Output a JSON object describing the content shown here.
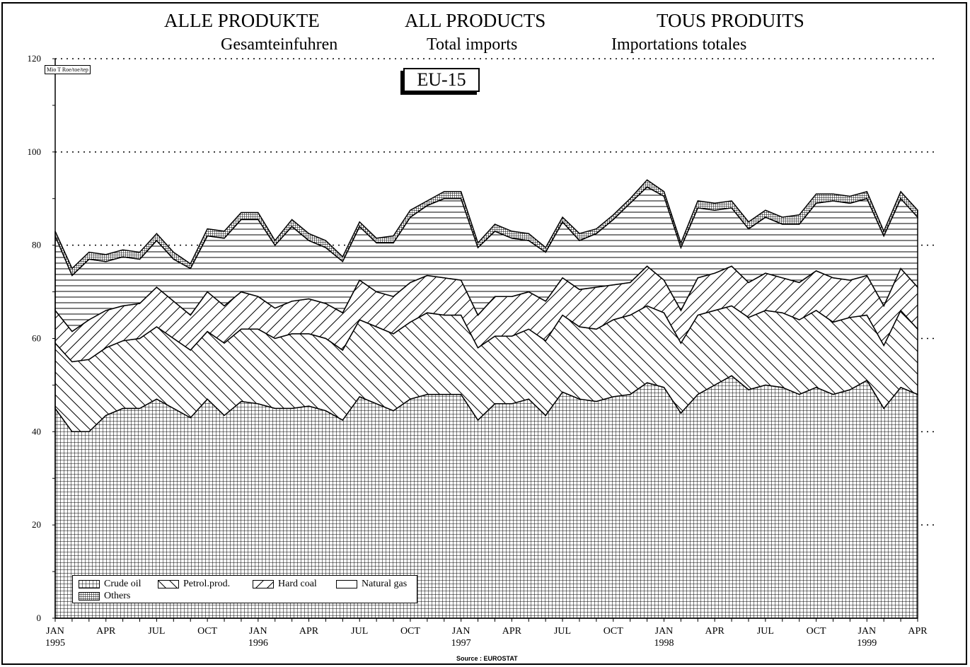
{
  "titles": {
    "de": "ALLE PRODUKTE",
    "en": "ALL PRODUCTS",
    "fr": "TOUS PRODUITS",
    "sub_de": "Gesamteinfuhren",
    "sub_en": "Total imports",
    "sub_fr": "Importations totales"
  },
  "region_label": "EU-15",
  "unit_label": "Mio T Roe/toe/tep",
  "source": "Source : EUROSTAT",
  "legend": {
    "crude_oil": "Crude oil",
    "petrol_prod": "Petrol.prod.",
    "hard_coal": "Hard coal",
    "natural_gas": "Natural gas",
    "others": "Others"
  },
  "chart_data": {
    "type": "area",
    "stacked": true,
    "ylim": [
      0,
      120
    ],
    "yticks": [
      0,
      20,
      40,
      60,
      80,
      100,
      120
    ],
    "grid": "dotted horizontal",
    "legend_position": "bottom-left",
    "x_tick_labels": [
      {
        "index": 0,
        "month": "JAN",
        "year": "1995"
      },
      {
        "index": 3,
        "month": "APR",
        "year": ""
      },
      {
        "index": 6,
        "month": "JUL",
        "year": ""
      },
      {
        "index": 9,
        "month": "OCT",
        "year": ""
      },
      {
        "index": 12,
        "month": "JAN",
        "year": "1996"
      },
      {
        "index": 15,
        "month": "APR",
        "year": ""
      },
      {
        "index": 18,
        "month": "JUL",
        "year": ""
      },
      {
        "index": 21,
        "month": "OCT",
        "year": ""
      },
      {
        "index": 24,
        "month": "JAN",
        "year": "1997"
      },
      {
        "index": 27,
        "month": "APR",
        "year": ""
      },
      {
        "index": 30,
        "month": "JUL",
        "year": ""
      },
      {
        "index": 33,
        "month": "OCT",
        "year": ""
      },
      {
        "index": 36,
        "month": "JAN",
        "year": "1998"
      },
      {
        "index": 39,
        "month": "APR",
        "year": ""
      },
      {
        "index": 42,
        "month": "JUL",
        "year": ""
      },
      {
        "index": 45,
        "month": "OCT",
        "year": ""
      },
      {
        "index": 48,
        "month": "JAN",
        "year": "1999"
      },
      {
        "index": 51,
        "month": "APR",
        "year": ""
      }
    ],
    "cumulative_series": [
      {
        "name": "Crude oil",
        "pattern": "grid",
        "values": [
          45,
          40,
          40,
          43.5,
          45,
          45,
          47,
          45,
          43,
          47,
          43.5,
          46.5,
          46,
          45,
          45,
          45.5,
          44.5,
          42.5,
          47.5,
          46,
          44.5,
          47,
          48,
          48,
          48,
          42.5,
          46,
          46,
          47,
          43.5,
          48.5,
          47,
          46.5,
          47.5,
          48,
          50.5,
          49.5,
          44,
          48,
          50,
          52,
          49,
          50,
          49.5,
          48,
          49.5,
          48,
          49,
          51,
          45,
          49.5,
          48
        ]
      },
      {
        "name": "Petrol.prod.",
        "pattern": "backslash",
        "values": [
          59,
          55,
          55.5,
          58,
          59.5,
          60,
          62.5,
          60,
          57.5,
          61.5,
          59,
          62,
          62,
          60,
          61,
          61,
          60,
          57.5,
          64,
          62.5,
          61,
          63.5,
          65.5,
          65,
          65,
          58,
          60.5,
          60.5,
          62,
          59.5,
          65,
          62.5,
          62,
          64,
          65,
          67,
          65.5,
          59,
          65,
          66,
          67,
          64.5,
          66,
          65.5,
          64,
          66,
          63.5,
          64.5,
          65,
          58.5,
          66,
          62
        ]
      },
      {
        "name": "Hard coal",
        "pattern": "slash",
        "values": [
          66,
          61.5,
          64,
          66,
          67,
          67.5,
          71,
          68,
          65,
          70,
          67,
          70,
          69,
          66.5,
          68,
          68.5,
          67.5,
          65.5,
          72.5,
          70,
          69,
          72,
          73.5,
          73,
          72.5,
          65,
          69,
          69,
          70,
          68,
          73,
          70.5,
          71,
          71.5,
          72,
          75.5,
          72.5,
          66,
          73,
          74,
          75.5,
          72,
          74,
          73,
          72,
          74.5,
          73,
          72.5,
          73.5,
          67,
          75,
          71
        ]
      },
      {
        "name": "Natural gas",
        "pattern": "hlines",
        "values": [
          82,
          73.5,
          77,
          76.5,
          77.5,
          77,
          81,
          77,
          75,
          82,
          81.5,
          85.5,
          85.5,
          80,
          84,
          81,
          79.5,
          76.5,
          84,
          80.5,
          80.5,
          86,
          88.5,
          90,
          90,
          79.5,
          83,
          81.5,
          81,
          78.5,
          85,
          81,
          82.5,
          85.5,
          89,
          92.5,
          90.5,
          79.5,
          88,
          87.5,
          88,
          83.5,
          86,
          84.5,
          84.5,
          89,
          89.5,
          89,
          90,
          82,
          90,
          86
        ]
      },
      {
        "name": "Others",
        "pattern": "dense",
        "values": [
          83,
          75,
          78.5,
          78,
          79,
          78.5,
          82.5,
          78.5,
          76,
          83.5,
          83,
          87,
          87,
          81,
          85.5,
          82.5,
          81,
          77.5,
          85,
          81.5,
          82,
          87.5,
          89.5,
          91.5,
          91.5,
          80.5,
          84.5,
          83,
          82.5,
          79.5,
          86,
          82.5,
          83.5,
          86.5,
          90,
          94,
          91.5,
          80.5,
          89.5,
          89,
          89.5,
          85,
          87.5,
          86,
          86.5,
          91,
          91,
          90.5,
          91.5,
          83,
          91.5,
          87.5
        ]
      }
    ]
  }
}
